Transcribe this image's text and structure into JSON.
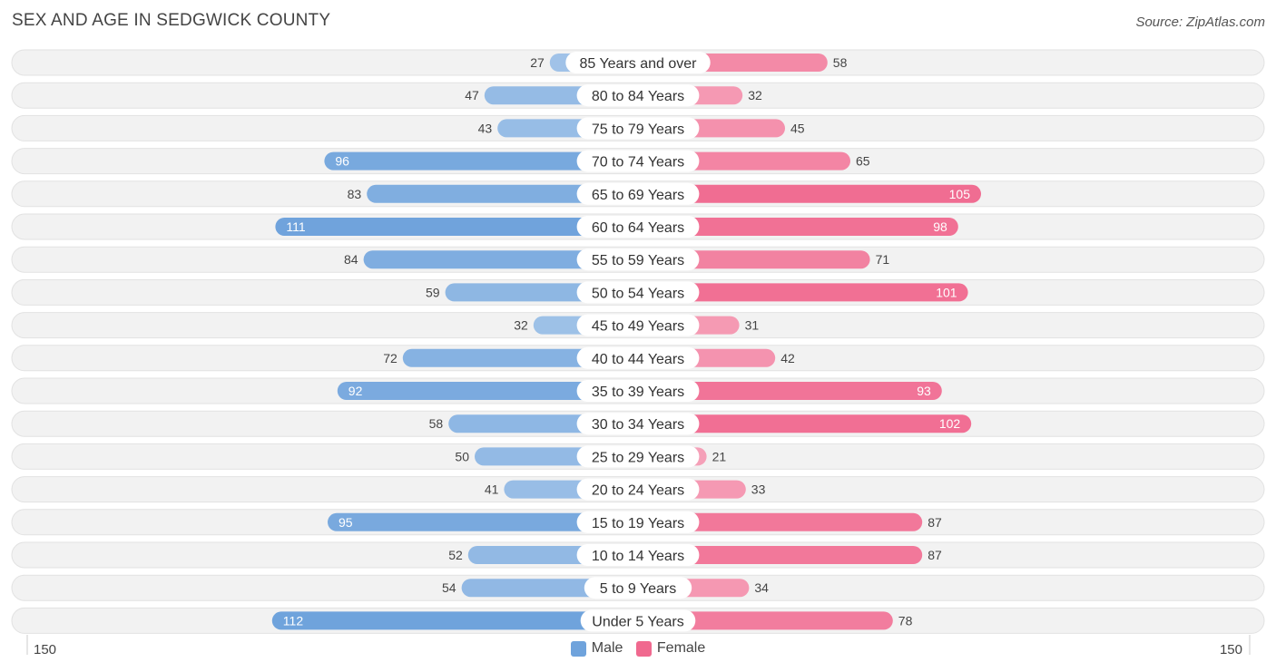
{
  "chart_data": {
    "type": "bar",
    "orientation": "horizontal-diverging",
    "title": "SEX AND AGE IN SEDGWICK COUNTY",
    "source": "Source: ZipAtlas.com",
    "categories": [
      "85 Years and over",
      "80 to 84 Years",
      "75 to 79 Years",
      "70 to 74 Years",
      "65 to 69 Years",
      "60 to 64 Years",
      "55 to 59 Years",
      "50 to 54 Years",
      "45 to 49 Years",
      "40 to 44 Years",
      "35 to 39 Years",
      "30 to 34 Years",
      "25 to 29 Years",
      "20 to 24 Years",
      "15 to 19 Years",
      "10 to 14 Years",
      "5 to 9 Years",
      "Under 5 Years"
    ],
    "series": [
      {
        "name": "Male",
        "color": "#6fa3dc",
        "values": [
          27,
          47,
          43,
          96,
          83,
          111,
          84,
          59,
          32,
          72,
          92,
          58,
          50,
          41,
          95,
          52,
          54,
          112
        ]
      },
      {
        "name": "Female",
        "color": "#f0698f",
        "values": [
          58,
          32,
          45,
          65,
          105,
          98,
          71,
          101,
          31,
          42,
          93,
          102,
          21,
          33,
          87,
          87,
          34,
          78
        ]
      }
    ],
    "axis_max": 150,
    "axis_left_label": "150",
    "axis_right_label": "150",
    "legend": [
      "Male",
      "Female"
    ]
  }
}
